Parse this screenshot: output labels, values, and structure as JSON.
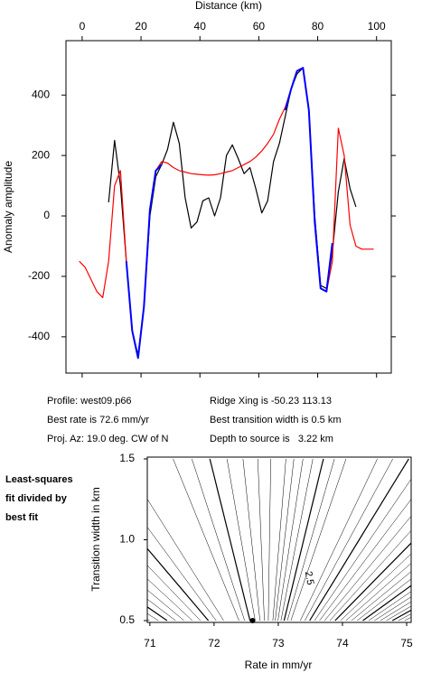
{
  "chart_data": [
    {
      "type": "line",
      "x_label": "Distance (km)",
      "y_label": "Anomaly amplitude",
      "x": [
        -1,
        1,
        3,
        5,
        7,
        9,
        11,
        13,
        15,
        17,
        19,
        21,
        23,
        25,
        27,
        29,
        31,
        33,
        35,
        37,
        39,
        41,
        43,
        45,
        47,
        49,
        51,
        53,
        55,
        57,
        59,
        61,
        63,
        65,
        67,
        69,
        71,
        73,
        75,
        77,
        79,
        81,
        83,
        85,
        87,
        89,
        91,
        93,
        95,
        97,
        99
      ],
      "series": [
        {
          "color": "#000000",
          "values": [
            null,
            null,
            null,
            null,
            null,
            45,
            250,
            100,
            -150,
            -380,
            -460,
            -300,
            0,
            130,
            170,
            220,
            310,
            240,
            60,
            -40,
            -20,
            50,
            60,
            0,
            60,
            200,
            235,
            190,
            140,
            160,
            90,
            10,
            50,
            180,
            240,
            330,
            420,
            470,
            490,
            350,
            0,
            -230,
            -240,
            -120,
            80,
            190,
            90,
            30,
            null,
            null,
            null
          ]
        },
        {
          "color": "#ff0000",
          "values": [
            -150,
            -170,
            -210,
            -250,
            -270,
            -150,
            100,
            150,
            -150,
            -380,
            -470,
            -300,
            20,
            150,
            180,
            175,
            160,
            150,
            145,
            140,
            138,
            136,
            135,
            136,
            140,
            145,
            150,
            160,
            170,
            180,
            195,
            215,
            240,
            270,
            320,
            360,
            420,
            480,
            490,
            350,
            -20,
            -240,
            -250,
            -150,
            290,
            200,
            -30,
            -100,
            -110,
            -110,
            -110
          ]
        },
        {
          "color": "#0000ff",
          "values": [
            null,
            null,
            null,
            null,
            null,
            null,
            null,
            null,
            -150,
            -380,
            -470,
            -300,
            20,
            150,
            170,
            null,
            null,
            null,
            null,
            null,
            null,
            null,
            null,
            null,
            null,
            null,
            null,
            null,
            null,
            null,
            null,
            null,
            null,
            null,
            null,
            350,
            420,
            480,
            490,
            350,
            -20,
            -240,
            -250,
            -90,
            null,
            null,
            null,
            null,
            null,
            null,
            null
          ]
        }
      ],
      "xlim": [
        -5.5,
        105
      ],
      "xticks": [
        0,
        20,
        40,
        60,
        80,
        100
      ],
      "ylim": [
        -520,
        580
      ],
      "yticks": [
        -400,
        -200,
        0,
        200,
        400
      ]
    },
    {
      "type": "contour",
      "title": [
        "Least-squares",
        "fit divided by",
        "best fit"
      ],
      "x_label": "Rate in mm/yr",
      "y_label": "Transition width in km",
      "xlim": [
        70.96,
        75.07
      ],
      "xticks": [
        71,
        72,
        73,
        74,
        75
      ],
      "ylim": [
        0.5,
        1.5
      ],
      "yticks": [
        {
          "value": 0.5,
          "label": "0.5"
        },
        {
          "value": 1.0,
          "label": "1.0"
        },
        {
          "value": 1.5,
          "label": "1.5"
        }
      ],
      "contour_label": "2.5",
      "best_x": 72.6,
      "best_y": 0.5
    }
  ],
  "info": {
    "left": [
      "Profile: west09.p66",
      "Best rate is 72.6 mm/yr",
      "Proj. Az: 19.0 deg. CW of N"
    ],
    "right": [
      "Ridge Xing is -50.23 113.13",
      "Best transition width is 0.5 km",
      "Depth to source is   3.22 km"
    ]
  }
}
